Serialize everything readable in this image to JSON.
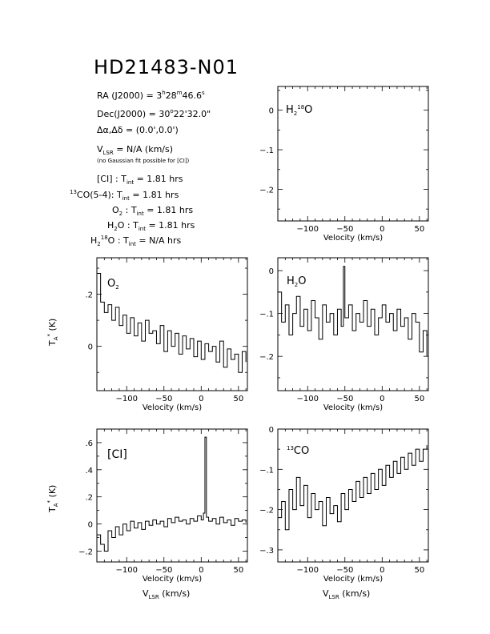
{
  "header": {
    "title": "HD21483-N01",
    "ra": "RA (J2000) = 3h28m46.6s",
    "dec": "Dec(J2000) = 30°22'32.0\"",
    "offset": "Δα,Δδ = (0.0',0.0')",
    "vlsr": "VLSR = N/A (km/s)",
    "note": "(no Gaussian fit possible for [CI])",
    "tint": [
      "[CI] : Tint = 1.81 hrs",
      "13CO(5-4): Tint = 1.81 hrs",
      "O2 : Tint = 1.81 hrs",
      "H2O : Tint = 1.81 hrs",
      "H2 18O : Tint = N/A hrs"
    ]
  },
  "chart_data": [
    {
      "type": "line",
      "id": "h218o",
      "title": "H2 18O",
      "xlabel": "Velocity (km/s)",
      "ylabel": "",
      "xlim": [
        -140,
        62
      ],
      "ylim": [
        -0.28,
        0.06
      ],
      "xticks": [
        -100,
        -50,
        0,
        50
      ],
      "yticks": [
        0,
        -0.1,
        -0.2
      ],
      "x": [],
      "y": []
    },
    {
      "type": "line",
      "id": "o2",
      "title": "O2",
      "xlabel": "Velocity (km/s)",
      "ylabel": "TA* (K)",
      "xlim": [
        -140,
        62
      ],
      "ylim": [
        -0.17,
        0.34
      ],
      "xticks": [
        -100,
        -50,
        0,
        50
      ],
      "yticks": [
        0,
        0.2
      ],
      "x": [
        -140,
        -135,
        -130,
        -125,
        -120,
        -115,
        -110,
        -105,
        -100,
        -95,
        -90,
        -85,
        -80,
        -75,
        -70,
        -65,
        -60,
        -55,
        -50,
        -45,
        -40,
        -35,
        -30,
        -25,
        -20,
        -15,
        -10,
        -5,
        0,
        5,
        10,
        15,
        20,
        25,
        30,
        35,
        40,
        45,
        50,
        55,
        60
      ],
      "y": [
        0.28,
        0.17,
        0.13,
        0.16,
        0.1,
        0.15,
        0.08,
        0.12,
        0.05,
        0.11,
        0.04,
        0.09,
        0.02,
        0.1,
        0.05,
        0.06,
        0.01,
        0.08,
        -0.02,
        0.06,
        0.0,
        0.05,
        -0.03,
        0.04,
        -0.01,
        0.03,
        -0.04,
        0.02,
        -0.05,
        0.01,
        -0.02,
        0.0,
        -0.06,
        0.02,
        -0.08,
        -0.01,
        -0.05,
        -0.03,
        -0.1,
        -0.02,
        -0.06
      ]
    },
    {
      "type": "line",
      "id": "h2o",
      "title": "H2O",
      "xlabel": "Velocity (km/s)",
      "ylabel": "",
      "xlim": [
        -140,
        62
      ],
      "ylim": [
        -0.28,
        0.03
      ],
      "xticks": [
        -100,
        -50,
        0,
        50
      ],
      "yticks": [
        0,
        -0.1,
        -0.2
      ],
      "x": [
        -140,
        -135,
        -130,
        -125,
        -120,
        -115,
        -110,
        -105,
        -100,
        -95,
        -90,
        -85,
        -80,
        -75,
        -70,
        -65,
        -60,
        -55,
        -52,
        -50,
        -45,
        -40,
        -35,
        -30,
        -25,
        -20,
        -15,
        -10,
        -5,
        0,
        5,
        10,
        15,
        20,
        25,
        30,
        35,
        40,
        45,
        50,
        55,
        60
      ],
      "y": [
        -0.05,
        -0.12,
        -0.08,
        -0.15,
        -0.1,
        -0.06,
        -0.13,
        -0.09,
        -0.14,
        -0.07,
        -0.11,
        -0.16,
        -0.08,
        -0.12,
        -0.1,
        -0.15,
        -0.09,
        -0.13,
        0.01,
        -0.11,
        -0.08,
        -0.14,
        -0.1,
        -0.12,
        -0.07,
        -0.13,
        -0.09,
        -0.15,
        -0.11,
        -0.08,
        -0.12,
        -0.1,
        -0.14,
        -0.09,
        -0.13,
        -0.11,
        -0.16,
        -0.1,
        -0.12,
        -0.19,
        -0.14,
        -0.2
      ]
    },
    {
      "type": "line",
      "id": "ci",
      "title": "[CI]",
      "xlabel": "Velocity (km/s)",
      "ylabel": "TA* (K)",
      "xlim": [
        -140,
        62
      ],
      "ylim": [
        -0.28,
        0.7
      ],
      "xticks": [
        -100,
        -50,
        0,
        50
      ],
      "yticks": [
        -0.2,
        0,
        0.2,
        0.4,
        0.6
      ],
      "x": [
        -140,
        -135,
        -130,
        -125,
        -120,
        -115,
        -110,
        -105,
        -100,
        -95,
        -90,
        -85,
        -80,
        -75,
        -70,
        -65,
        -60,
        -55,
        -50,
        -45,
        -40,
        -35,
        -30,
        -25,
        -20,
        -15,
        -10,
        -5,
        0,
        3,
        5,
        7,
        10,
        15,
        20,
        25,
        30,
        35,
        40,
        45,
        50,
        55,
        60
      ],
      "y": [
        -0.08,
        -0.15,
        -0.2,
        -0.05,
        -0.1,
        -0.02,
        -0.08,
        0.0,
        -0.05,
        0.02,
        -0.03,
        0.01,
        -0.04,
        0.02,
        -0.01,
        0.03,
        0.0,
        0.02,
        -0.02,
        0.04,
        0.01,
        0.05,
        0.02,
        0.03,
        0.0,
        0.04,
        0.02,
        0.06,
        0.03,
        0.08,
        0.64,
        0.05,
        0.02,
        0.04,
        0.0,
        0.05,
        0.01,
        0.03,
        -0.01,
        0.04,
        0.02,
        0.03,
        0.01
      ]
    },
    {
      "type": "line",
      "id": "13co",
      "title": "13CO",
      "xlabel": "Velocity (km/s)",
      "ylabel": "",
      "xlim": [
        -140,
        62
      ],
      "ylim": [
        -0.33,
        0.0
      ],
      "xticks": [
        -100,
        -50,
        0,
        50
      ],
      "yticks": [
        0,
        -0.1,
        -0.2,
        -0.3
      ],
      "x": [
        -140,
        -135,
        -130,
        -125,
        -120,
        -115,
        -110,
        -105,
        -100,
        -95,
        -90,
        -85,
        -80,
        -75,
        -70,
        -65,
        -60,
        -55,
        -50,
        -45,
        -40,
        -35,
        -30,
        -25,
        -20,
        -15,
        -10,
        -5,
        0,
        5,
        10,
        15,
        20,
        25,
        30,
        35,
        40,
        45,
        50,
        55,
        60
      ],
      "y": [
        -0.22,
        -0.18,
        -0.25,
        -0.15,
        -0.2,
        -0.12,
        -0.19,
        -0.14,
        -0.22,
        -0.16,
        -0.2,
        -0.18,
        -0.24,
        -0.17,
        -0.21,
        -0.19,
        -0.23,
        -0.16,
        -0.2,
        -0.15,
        -0.18,
        -0.13,
        -0.17,
        -0.12,
        -0.16,
        -0.11,
        -0.15,
        -0.1,
        -0.14,
        -0.09,
        -0.12,
        -0.08,
        -0.11,
        -0.07,
        -0.1,
        -0.06,
        -0.09,
        -0.05,
        -0.08,
        -0.05,
        -0.04
      ]
    }
  ],
  "axes_words": {
    "vlsr_axis": "VLSR (km/s)"
  }
}
